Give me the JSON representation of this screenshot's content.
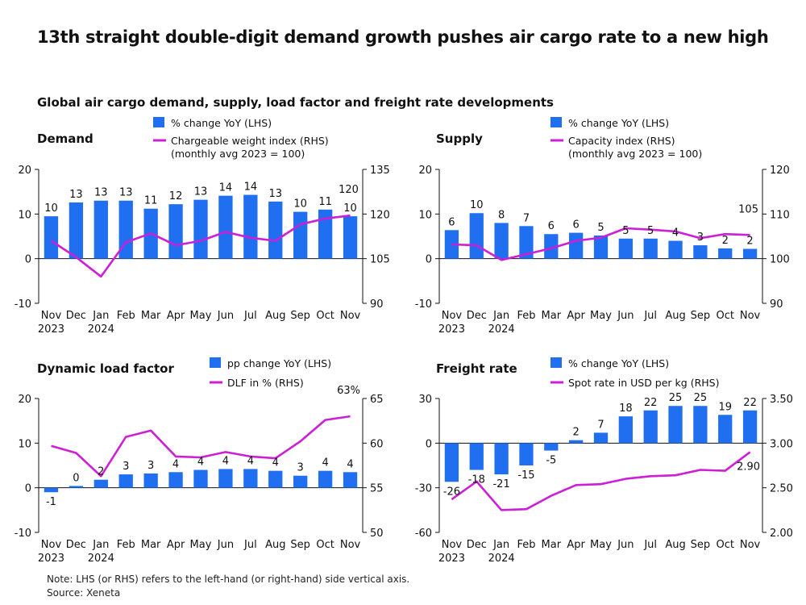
{
  "header": {
    "title": "13th straight double-digit demand growth pushes air cargo rate to a new high",
    "subtitle": "Global air cargo demand, supply, load factor and freight rate developments"
  },
  "footer": {
    "note": "Note: LHS (or RHS) refers to the left-hand (or right-hand) side vertical axis.",
    "source": "Source: Xeneta"
  },
  "colors": {
    "bar": "#1f6ff0",
    "line": "#cc1fd6",
    "axis": "#111111"
  },
  "chart_data": [
    {
      "type": "bar",
      "title": "Demand",
      "categories": [
        "Nov",
        "Dec",
        "Jan",
        "Feb",
        "Mar",
        "Apr",
        "May",
        "Jun",
        "Jul",
        "Aug",
        "Sep",
        "Oct",
        "Nov"
      ],
      "year_labels": [
        "2023",
        "",
        "2024",
        "",
        "",
        "",
        "",
        "",
        "",
        "",
        "",
        "",
        ""
      ],
      "ylim_left": [
        -10,
        20
      ],
      "yticks_left": [
        -10,
        0,
        10,
        20
      ],
      "ylim_right": [
        90,
        135
      ],
      "yticks_right": [
        90,
        105,
        120,
        135
      ],
      "legend": [
        "% change YoY (LHS)",
        "Chargeable weight index (RHS)",
        "(monthly avg 2023 = 100)"
      ],
      "series": [
        {
          "name": "% change YoY (LHS)",
          "type": "bar",
          "axis": "left",
          "values": [
            9.5,
            12.6,
            13,
            13,
            11.2,
            12.2,
            13.2,
            14.1,
            14.3,
            12.8,
            10.5,
            11,
            9.5
          ],
          "labels": [
            "10",
            "13",
            "13",
            "13",
            "11",
            "12",
            "13",
            "14",
            "14",
            "13",
            "10",
            "11",
            "10"
          ]
        },
        {
          "name": "Chargeable weight index (RHS)",
          "type": "line",
          "axis": "right",
          "values": [
            111,
            105.5,
            99,
            110.5,
            113.5,
            109.5,
            111,
            114,
            112,
            111,
            116.5,
            118.5,
            119.5
          ],
          "end_label": "120"
        }
      ]
    },
    {
      "type": "bar",
      "title": "Supply",
      "categories": [
        "Nov",
        "Dec",
        "Jan",
        "Feb",
        "Mar",
        "Apr",
        "May",
        "Jun",
        "Jul",
        "Aug",
        "Sep",
        "Oct",
        "Nov"
      ],
      "year_labels": [
        "2023",
        "",
        "2024",
        "",
        "",
        "",
        "",
        "",
        "",
        "",
        "",
        "",
        ""
      ],
      "ylim_left": [
        -10,
        20
      ],
      "yticks_left": [
        -10,
        0,
        10,
        20
      ],
      "ylim_right": [
        90,
        120
      ],
      "yticks_right": [
        90,
        100,
        110,
        120
      ],
      "legend": [
        "% change YoY (LHS)",
        "Capacity index (RHS)",
        "(monthly avg 2023 = 100)"
      ],
      "series": [
        {
          "name": "% change YoY (LHS)",
          "type": "bar",
          "axis": "left",
          "values": [
            6.4,
            10.2,
            8,
            7.3,
            5.5,
            5.8,
            5.2,
            4.5,
            4.5,
            4,
            3,
            2.3,
            2.2
          ],
          "labels": [
            "6",
            "10",
            "8",
            "7",
            "6",
            "6",
            "5",
            "5",
            "5",
            "4",
            "3",
            "2",
            "2"
          ]
        },
        {
          "name": "Capacity index (RHS)",
          "type": "line",
          "axis": "right",
          "values": [
            103.2,
            103,
            99.7,
            101,
            102.3,
            104,
            104.7,
            106.8,
            106.5,
            106.1,
            104.6,
            105.5,
            105.3
          ],
          "end_label": "105"
        }
      ]
    },
    {
      "type": "bar",
      "title": "Dynamic load factor",
      "categories": [
        "Nov",
        "Dec",
        "Jan",
        "Feb",
        "Mar",
        "Apr",
        "May",
        "Jun",
        "Jul",
        "Aug",
        "Sep",
        "Oct",
        "Nov"
      ],
      "year_labels": [
        "2023",
        "",
        "2024",
        "",
        "",
        "",
        "",
        "",
        "",
        "",
        "",
        "",
        ""
      ],
      "ylim_left": [
        -10,
        20
      ],
      "yticks_left": [
        -10,
        0,
        10,
        20
      ],
      "ylim_right": [
        50,
        65
      ],
      "yticks_right": [
        50,
        55,
        60,
        65
      ],
      "legend": [
        "pp change YoY (LHS)",
        "DLF in % (RHS)"
      ],
      "series": [
        {
          "name": "pp change YoY (LHS)",
          "type": "bar",
          "axis": "left",
          "values": [
            -1,
            0.4,
            1.8,
            3,
            3.2,
            3.5,
            4,
            4.2,
            4.2,
            3.8,
            2.7,
            3.8,
            3.5
          ],
          "labels": [
            "-1",
            "0",
            "2",
            "3",
            "3",
            "4",
            "4",
            "4",
            "4",
            "4",
            "3",
            "4",
            "4"
          ]
        },
        {
          "name": "DLF in % (RHS)",
          "type": "line",
          "axis": "right",
          "values": [
            59.7,
            58.9,
            56.3,
            60.7,
            61.4,
            58.5,
            58.4,
            59,
            58.5,
            58.3,
            60.2,
            62.6,
            63
          ],
          "end_label": "63%"
        }
      ]
    },
    {
      "type": "bar",
      "title": "Freight rate",
      "categories": [
        "Nov",
        "Dec",
        "Jan",
        "Feb",
        "Mar",
        "Apr",
        "May",
        "Jun",
        "Jul",
        "Aug",
        "Sep",
        "Oct",
        "Nov"
      ],
      "year_labels": [
        "2023",
        "",
        "2024",
        "",
        "",
        "",
        "",
        "",
        "",
        "",
        "",
        "",
        ""
      ],
      "ylim_left": [
        -60,
        30
      ],
      "yticks_left": [
        -60,
        -30,
        0,
        30
      ],
      "ylim_right": [
        2.0,
        3.5
      ],
      "yticks_right": [
        "2.00",
        "2.50",
        "3.00",
        "3.50"
      ],
      "legend": [
        "% change YoY (LHS)",
        "Spot rate in USD per kg (RHS)"
      ],
      "series": [
        {
          "name": "% change YoY (LHS)",
          "type": "bar",
          "axis": "left",
          "values": [
            -26,
            -18,
            -21,
            -15,
            -5,
            2,
            7,
            18,
            22,
            25,
            25,
            19,
            22
          ],
          "labels": [
            "-26",
            "-18",
            "-21",
            "-15",
            "-5",
            "2",
            "7",
            "18",
            "22",
            "25",
            "25",
            "19",
            "22"
          ]
        },
        {
          "name": "Spot rate in USD per kg (RHS)",
          "type": "line",
          "axis": "right",
          "values": [
            2.37,
            2.57,
            2.25,
            2.26,
            2.41,
            2.53,
            2.54,
            2.6,
            2.63,
            2.64,
            2.7,
            2.69,
            2.9
          ],
          "end_label": "2.90"
        }
      ]
    }
  ]
}
